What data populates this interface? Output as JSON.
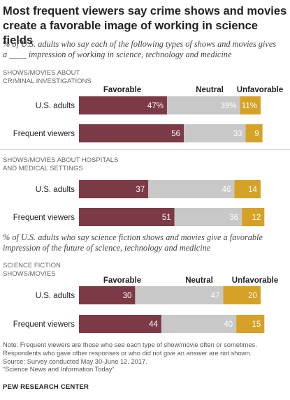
{
  "title": "Most frequent viewers say crime shows and movies create a favorable image of working in science fields",
  "subtitle_1": "% of U.S. adults who say each of the following types of shows and movies gives a ____ impression of working in science, technology and medicine",
  "subtitle_2": "% of U.S. adults who say science fiction shows and movies give a favorable impression of the future of science, technology and medicine",
  "legend": [
    "Favorable",
    "Neutral",
    "Unfavorable"
  ],
  "colors": {
    "favorable": "#7b3a45",
    "neutral": "#c8c8c8",
    "unfavorable": "#d5a227"
  },
  "chart_data": [
    {
      "type": "bar",
      "section": "SHOWS/MOVIES ABOUT\nCRIMINAL INVESTIGATIONS",
      "categories": [
        "U.S. adults",
        "Frequent viewers"
      ],
      "series": [
        {
          "name": "Favorable",
          "values": [
            47,
            56
          ],
          "labels": [
            "47%",
            "56"
          ]
        },
        {
          "name": "Neutral",
          "values": [
            39,
            33
          ],
          "labels": [
            "39%",
            "33"
          ]
        },
        {
          "name": "Unfavorable",
          "values": [
            11,
            9
          ],
          "labels": [
            "11%",
            "9"
          ]
        }
      ],
      "xlim": [
        0,
        100
      ]
    },
    {
      "type": "bar",
      "section": "SHOWS/MOVIES ABOUT HOSPITALS\nAND MEDICAL SETTINGS",
      "categories": [
        "U.S. adults",
        "Frequent viewers"
      ],
      "series": [
        {
          "name": "Favorable",
          "values": [
            37,
            51
          ],
          "labels": [
            "37",
            "51"
          ]
        },
        {
          "name": "Neutral",
          "values": [
            46,
            36
          ],
          "labels": [
            "46",
            "36"
          ]
        },
        {
          "name": "Unfavorable",
          "values": [
            14,
            12
          ],
          "labels": [
            "14",
            "12"
          ]
        }
      ],
      "xlim": [
        0,
        100
      ]
    },
    {
      "type": "bar",
      "section": "SCIENCE FICTION\nSHOWS/MOVIES",
      "categories": [
        "U.S. adults",
        "Frequent viewers"
      ],
      "series": [
        {
          "name": "Favorable",
          "values": [
            30,
            44
          ],
          "labels": [
            "30",
            "44"
          ]
        },
        {
          "name": "Neutral",
          "values": [
            47,
            40
          ],
          "labels": [
            "47",
            "40"
          ]
        },
        {
          "name": "Unfavorable",
          "values": [
            20,
            15
          ],
          "labels": [
            "20",
            "15"
          ]
        }
      ],
      "xlim": [
        0,
        100
      ]
    }
  ],
  "notes": [
    "Note: Frequent viewers are those who see each type of show/movie often or sometimes.",
    "Respondents who gave other responses or who did not give an answer are not shown.",
    "Source: Survey conducted May 30-June 12, 2017.",
    "“Science News and Information Today”"
  ],
  "source_brand": "PEW RESEARCH CENTER"
}
